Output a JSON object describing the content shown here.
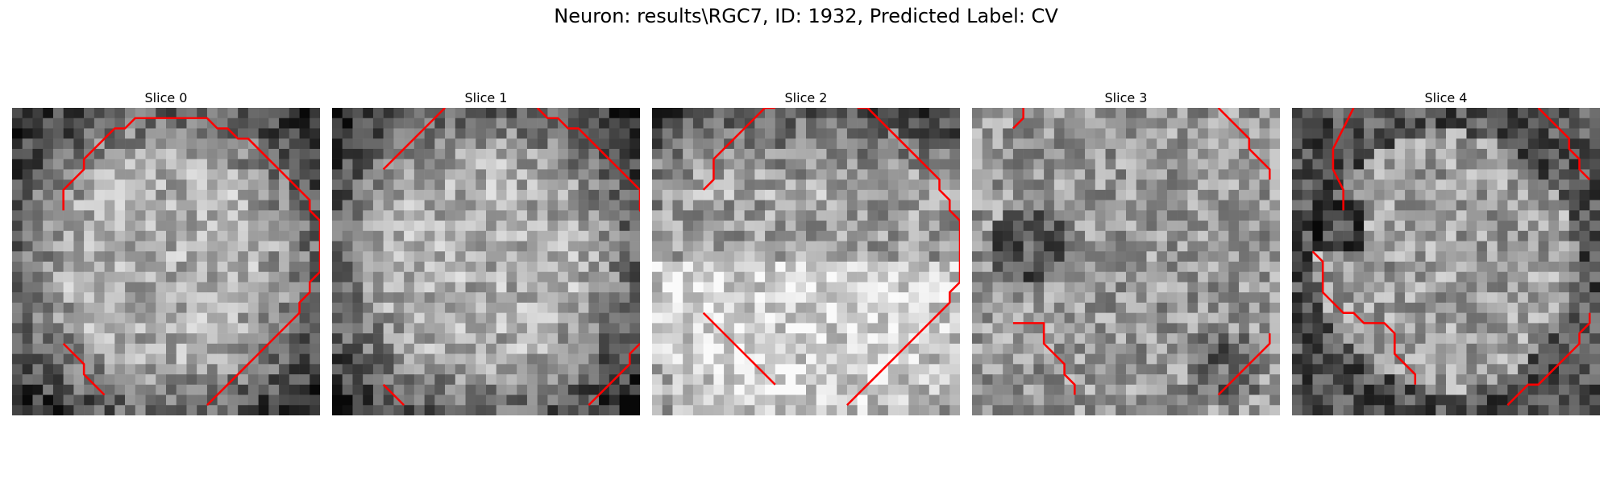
{
  "figure": {
    "title": "Neuron: results\\RGC7, ID: 1932, Predicted Label: CV"
  },
  "colors": {
    "contour": "#ff0000"
  },
  "panels": [
    {
      "title": "Slice 0",
      "brightness": "center-bright",
      "contours": [
        [
          [
            5,
            10
          ],
          [
            5,
            8
          ],
          [
            7,
            6
          ],
          [
            7,
            5
          ],
          [
            8,
            4
          ],
          [
            9,
            3
          ],
          [
            10,
            2
          ],
          [
            11,
            2
          ],
          [
            12,
            1
          ],
          [
            13,
            1
          ],
          [
            14,
            1
          ],
          [
            15,
            1
          ],
          [
            16,
            1
          ],
          [
            17,
            1
          ],
          [
            18,
            1
          ],
          [
            19,
            1
          ],
          [
            20,
            2
          ],
          [
            21,
            2
          ],
          [
            22,
            3
          ],
          [
            23,
            3
          ],
          [
            24,
            4
          ],
          [
            25,
            5
          ],
          [
            26,
            6
          ],
          [
            27,
            7
          ],
          [
            28,
            8
          ],
          [
            29,
            9
          ],
          [
            29,
            10
          ],
          [
            30,
            11
          ],
          [
            30,
            12
          ],
          [
            30,
            13
          ],
          [
            30,
            14
          ],
          [
            30,
            15
          ],
          [
            30,
            16
          ],
          [
            29,
            17
          ],
          [
            29,
            18
          ],
          [
            28,
            19
          ],
          [
            28,
            20
          ],
          [
            27,
            21
          ],
          [
            26,
            22
          ],
          [
            25,
            23
          ],
          [
            24,
            24
          ],
          [
            23,
            25
          ],
          [
            22,
            26
          ],
          [
            21,
            27
          ],
          [
            20,
            28
          ],
          [
            19,
            29
          ]
        ],
        [
          [
            5,
            23
          ],
          [
            6,
            24
          ],
          [
            7,
            25
          ],
          [
            7,
            26
          ],
          [
            8,
            27
          ],
          [
            9,
            28
          ]
        ]
      ]
    },
    {
      "title": "Slice 1",
      "brightness": "center-bright",
      "contours": [
        [
          [
            5,
            6
          ],
          [
            6,
            5
          ],
          [
            7,
            4
          ],
          [
            8,
            3
          ],
          [
            9,
            2
          ],
          [
            10,
            1
          ],
          [
            11,
            0
          ]
        ],
        [
          [
            20,
            0
          ],
          [
            21,
            1
          ],
          [
            22,
            1
          ],
          [
            23,
            2
          ],
          [
            24,
            2
          ],
          [
            25,
            3
          ],
          [
            26,
            4
          ],
          [
            27,
            5
          ],
          [
            28,
            6
          ],
          [
            29,
            7
          ],
          [
            30,
            8
          ],
          [
            30,
            9
          ],
          [
            30,
            10
          ],
          [
            31,
            11
          ]
        ],
        [
          [
            5,
            27
          ],
          [
            6,
            28
          ],
          [
            7,
            29
          ]
        ],
        [
          [
            30,
            23
          ],
          [
            29,
            24
          ],
          [
            29,
            25
          ],
          [
            28,
            26
          ],
          [
            27,
            27
          ],
          [
            26,
            28
          ],
          [
            25,
            29
          ]
        ]
      ]
    },
    {
      "title": "Slice 2",
      "brightness": "lower-bright",
      "contours": [
        [
          [
            5,
            8
          ],
          [
            6,
            7
          ],
          [
            6,
            5
          ],
          [
            7,
            4
          ],
          [
            8,
            3
          ],
          [
            9,
            2
          ],
          [
            10,
            1
          ],
          [
            11,
            0
          ],
          [
            12,
            0
          ]
        ],
        [
          [
            20,
            0
          ],
          [
            21,
            0
          ],
          [
            22,
            1
          ],
          [
            23,
            2
          ],
          [
            24,
            3
          ],
          [
            25,
            4
          ],
          [
            26,
            5
          ],
          [
            27,
            6
          ],
          [
            28,
            7
          ],
          [
            28,
            8
          ],
          [
            29,
            9
          ],
          [
            29,
            10
          ],
          [
            30,
            11
          ],
          [
            30,
            12
          ],
          [
            30,
            13
          ],
          [
            30,
            14
          ],
          [
            30,
            15
          ],
          [
            30,
            16
          ],
          [
            30,
            17
          ],
          [
            29,
            18
          ],
          [
            29,
            19
          ],
          [
            28,
            20
          ],
          [
            27,
            21
          ],
          [
            26,
            22
          ],
          [
            25,
            23
          ],
          [
            24,
            24
          ],
          [
            23,
            25
          ],
          [
            22,
            26
          ],
          [
            21,
            27
          ],
          [
            20,
            28
          ],
          [
            19,
            29
          ]
        ],
        [
          [
            5,
            20
          ],
          [
            6,
            21
          ],
          [
            7,
            22
          ],
          [
            8,
            23
          ],
          [
            9,
            24
          ],
          [
            10,
            25
          ],
          [
            11,
            26
          ],
          [
            12,
            27
          ]
        ]
      ]
    },
    {
      "title": "Slice 3",
      "brightness": "dark-patches",
      "contours": [
        [
          [
            5,
            0
          ],
          [
            5,
            1
          ],
          [
            4,
            2
          ]
        ],
        [
          [
            24,
            0
          ],
          [
            25,
            1
          ],
          [
            26,
            2
          ],
          [
            27,
            3
          ],
          [
            27,
            4
          ],
          [
            28,
            5
          ],
          [
            29,
            6
          ],
          [
            29,
            7
          ]
        ],
        [
          [
            4,
            21
          ],
          [
            5,
            21
          ],
          [
            6,
            21
          ],
          [
            7,
            21
          ],
          [
            7,
            22
          ],
          [
            7,
            23
          ],
          [
            8,
            24
          ],
          [
            9,
            25
          ],
          [
            9,
            26
          ],
          [
            10,
            27
          ],
          [
            10,
            28
          ]
        ],
        [
          [
            29,
            22
          ],
          [
            29,
            23
          ],
          [
            28,
            24
          ],
          [
            27,
            25
          ],
          [
            26,
            26
          ],
          [
            25,
            27
          ],
          [
            24,
            28
          ]
        ]
      ]
    },
    {
      "title": "Slice 4",
      "brightness": "dark-ring",
      "contours": [
        [
          [
            5,
            10
          ],
          [
            5,
            8
          ],
          [
            4,
            6
          ],
          [
            4,
            4
          ],
          [
            5,
            2
          ],
          [
            6,
            0
          ]
        ],
        [
          [
            24,
            0
          ],
          [
            25,
            1
          ],
          [
            26,
            2
          ],
          [
            27,
            3
          ],
          [
            27,
            4
          ],
          [
            28,
            5
          ],
          [
            28,
            6
          ],
          [
            29,
            7
          ]
        ],
        [
          [
            2,
            14
          ],
          [
            3,
            15
          ],
          [
            3,
            16
          ],
          [
            3,
            17
          ],
          [
            3,
            18
          ],
          [
            4,
            19
          ],
          [
            5,
            20
          ],
          [
            6,
            20
          ],
          [
            7,
            21
          ],
          [
            8,
            21
          ],
          [
            9,
            21
          ],
          [
            10,
            22
          ],
          [
            10,
            23
          ],
          [
            10,
            24
          ],
          [
            11,
            25
          ],
          [
            12,
            26
          ],
          [
            12,
            27
          ]
        ],
        [
          [
            29,
            20
          ],
          [
            29,
            21
          ],
          [
            28,
            22
          ],
          [
            28,
            23
          ],
          [
            27,
            24
          ],
          [
            26,
            25
          ],
          [
            25,
            26
          ],
          [
            24,
            27
          ],
          [
            23,
            27
          ],
          [
            22,
            28
          ],
          [
            21,
            29
          ]
        ]
      ]
    }
  ]
}
